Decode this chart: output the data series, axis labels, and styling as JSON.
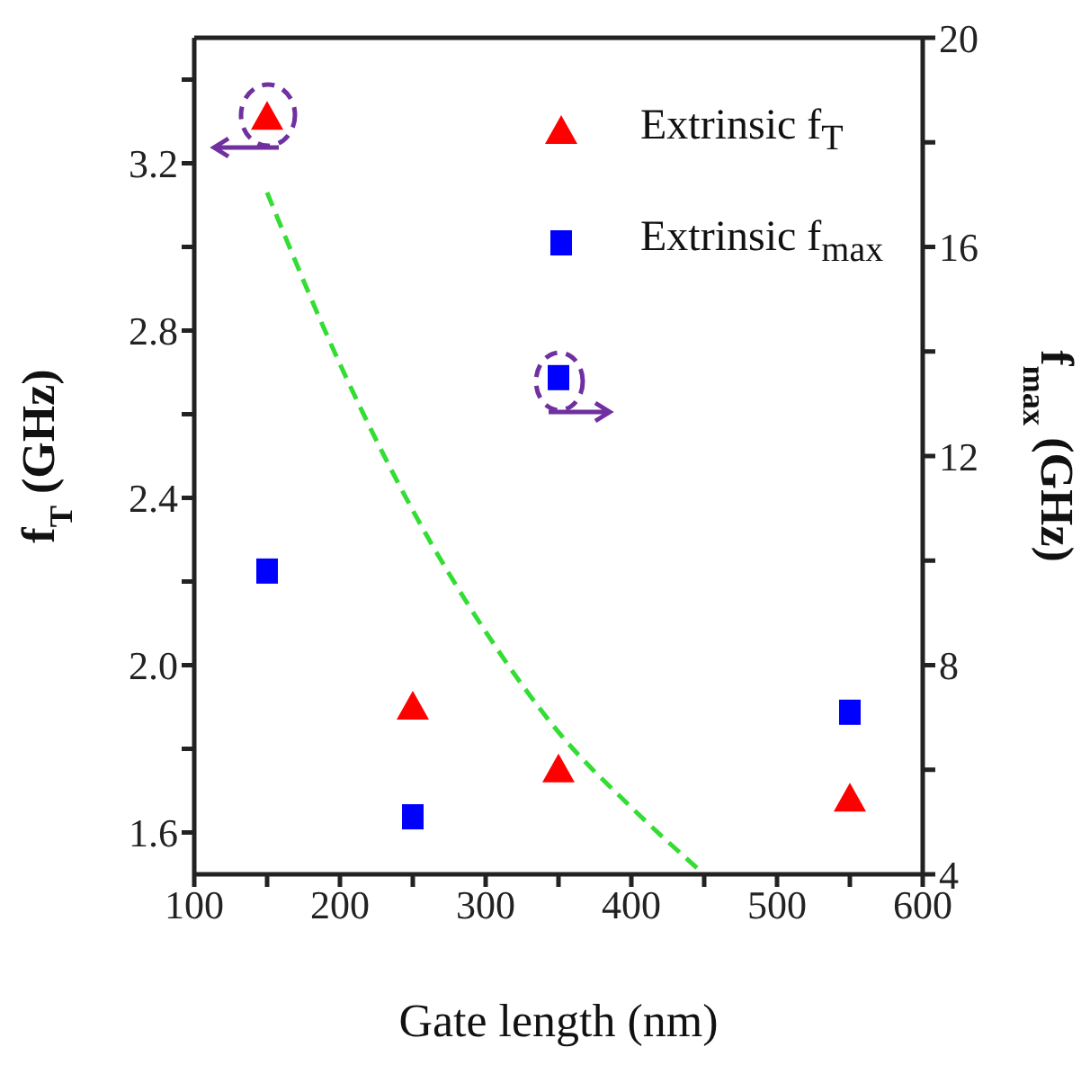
{
  "chart_data": {
    "type": "scatter",
    "xlabel": "Gate length (nm)",
    "ylabel": "f$_{T}$ (GHz)",
    "y2label": "f$_{max}$ (GHz)",
    "xlim": [
      100,
      600
    ],
    "xticks": [
      100,
      {
        "value": 150,
        "label": null
      },
      200,
      {
        "value": 250,
        "label": null
      },
      300,
      {
        "value": 350,
        "label": null
      },
      400,
      {
        "value": 450,
        "label": null
      },
      500,
      {
        "value": 550,
        "label": null
      },
      600
    ],
    "ylim": [
      1.5,
      3.5
    ],
    "yticks": [
      1.6,
      {
        "value": 1.8,
        "label": null
      },
      {
        "value": 2.0,
        "label": "2.0"
      },
      {
        "value": 2.2,
        "label": null
      },
      2.4,
      {
        "value": 2.6,
        "label": null
      },
      2.8,
      {
        "value": 3.0,
        "label": null
      },
      3.2,
      {
        "value": 3.4,
        "label": null
      }
    ],
    "y2lim": [
      4,
      20
    ],
    "y2ticks": [
      4,
      {
        "value": 6,
        "label": null
      },
      8,
      {
        "value": 10,
        "label": null
      },
      12,
      {
        "value": 14,
        "label": null
      },
      16,
      {
        "value": 18,
        "label": null
      },
      20
    ],
    "legend": "top right",
    "grid": false,
    "series": [
      {
        "name": "Extrinsic f$_{T}$",
        "color": "#ff0000",
        "marker": "triangle",
        "x": [
          150,
          250,
          350,
          550
        ],
        "values": [
          3.31,
          1.9,
          1.75,
          1.68
        ]
      },
      {
        "name": "Extrinsic f$_{max}$",
        "color": "#0000ff",
        "marker": "square",
        "axis": "y2",
        "x": [
          150,
          250,
          350,
          550
        ],
        "values": [
          9.8,
          5.1,
          13.5,
          7.1
        ]
      },
      {
        "type": "line",
        "color": "#33dd33",
        "line_style": "dashed",
        "marker": "none",
        "x": [
          150,
          200,
          250,
          300,
          350,
          400,
          450
        ],
        "values": [
          3.13,
          2.72,
          2.37,
          2.08,
          1.84,
          1.66,
          1.5
        ]
      }
    ]
  }
}
